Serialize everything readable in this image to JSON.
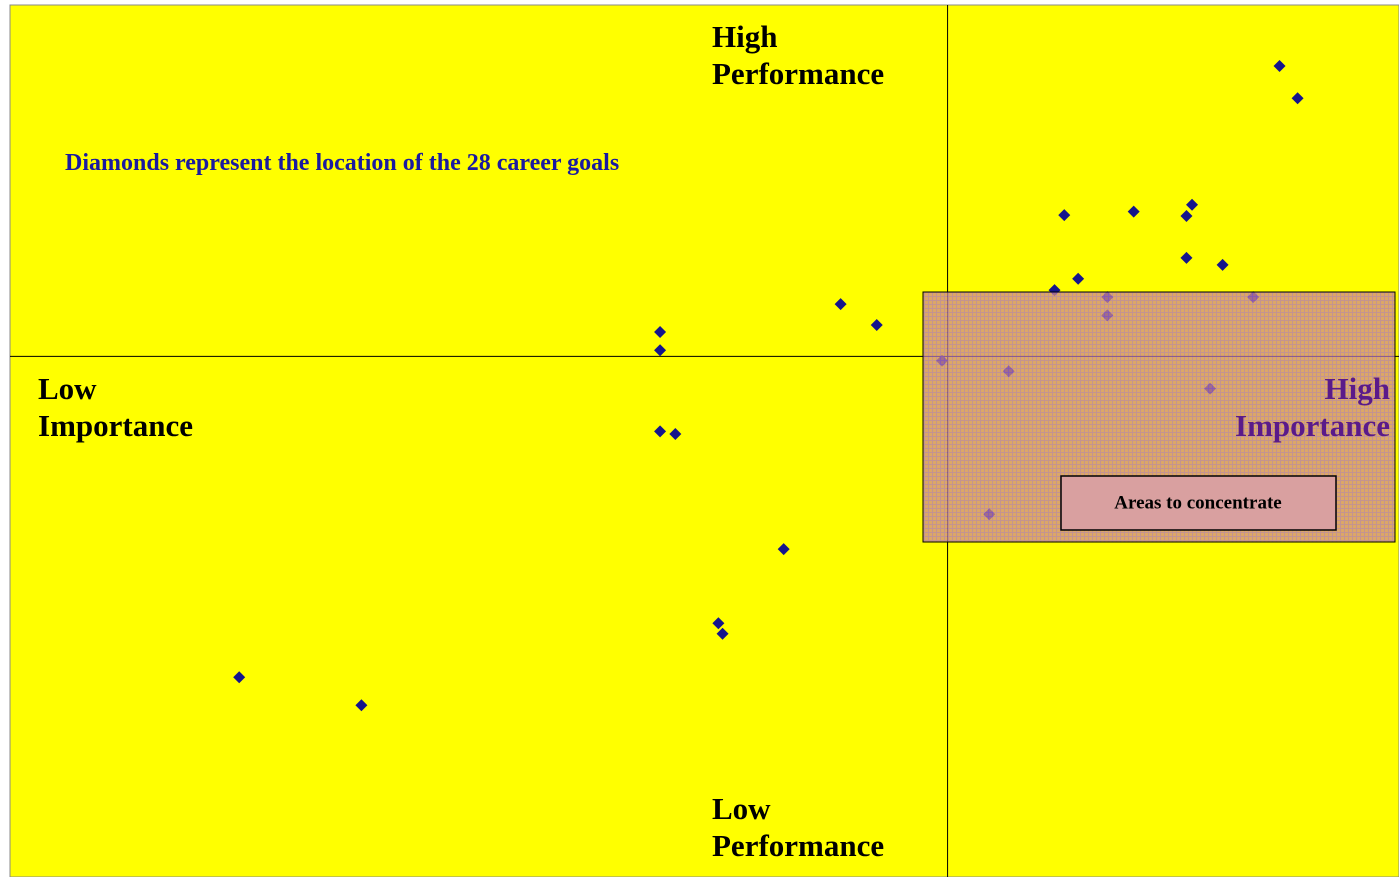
{
  "chart_data": {
    "type": "scatter",
    "annotation": "Diamonds represent the location of the 28 career goals",
    "quadrant_labels": {
      "top": "High Performance",
      "bottom": "Low Performance",
      "left": "Low Importance",
      "right": "High Importance"
    },
    "highlight_label": "Areas to concentrate",
    "xlim": [
      0,
      100
    ],
    "ylim": [
      0,
      100
    ],
    "dividers": {
      "x": 67.5,
      "y": 59.7
    },
    "color": "#14148c",
    "x": [
      91.4,
      92.7,
      75.9,
      80.9,
      84.7,
      85.1,
      84.7,
      87.3,
      76.9,
      75.2,
      79.0,
      89.5,
      79.0,
      59.8,
      62.4,
      46.8,
      46.8,
      67.1,
      71.9,
      86.4,
      46.8,
      47.9,
      70.5,
      55.7,
      51.0,
      51.3,
      16.5,
      25.3
    ],
    "y": [
      93.0,
      89.3,
      75.9,
      76.3,
      75.8,
      77.1,
      71.0,
      70.2,
      68.6,
      67.3,
      66.5,
      66.5,
      64.4,
      65.7,
      63.3,
      62.5,
      60.4,
      59.2,
      58.0,
      56.0,
      51.1,
      50.8,
      41.6,
      37.6,
      29.1,
      27.9,
      22.9,
      19.7
    ]
  }
}
